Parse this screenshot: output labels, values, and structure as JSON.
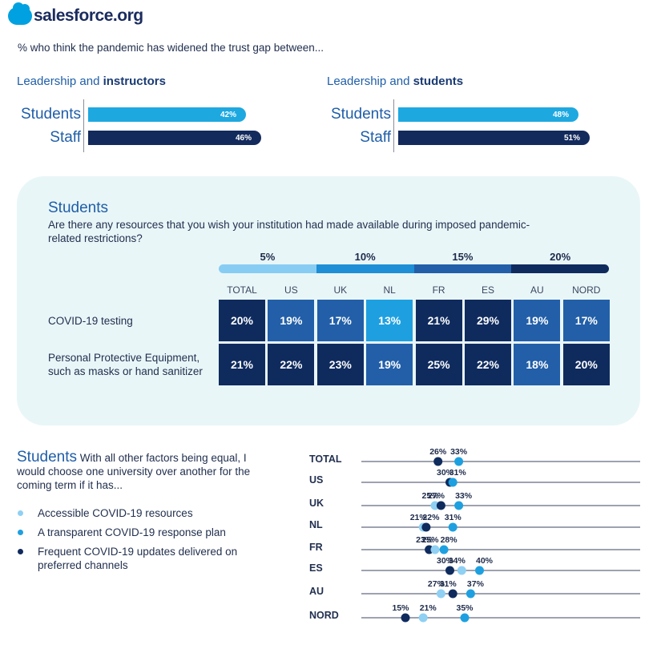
{
  "brand": {
    "logo_text": "salesforce.org",
    "accent": "#00a1e0",
    "navy": "#1a2b5e"
  },
  "intro": "% who think the pandemic has widened the trust gap between...",
  "bar_blocks": [
    {
      "title_prefix": "Leadership and ",
      "title_bold": "instructors",
      "bars": [
        {
          "label": "Students",
          "value": 42,
          "text": "42%",
          "color": "#1ea8e0"
        },
        {
          "label": "Staff",
          "value": 46,
          "text": "46%",
          "color": "#132a5c"
        }
      ]
    },
    {
      "title_prefix": "Leadership and ",
      "title_bold": "students",
      "bars": [
        {
          "label": "Students",
          "value": 48,
          "text": "48%",
          "color": "#1ea8e0"
        },
        {
          "label": "Staff",
          "value": 51,
          "text": "51%",
          "color": "#132a5c"
        }
      ]
    }
  ],
  "heatmap": {
    "title": "Students",
    "question": "Are there any resources that you wish your institution had made available during imposed pandemic-related restrictions?",
    "scale": [
      {
        "label": "5%",
        "color": "#87cdf3"
      },
      {
        "label": "10%",
        "color": "#1e8ed6"
      },
      {
        "label": "15%",
        "color": "#225fa8"
      },
      {
        "label": "20%",
        "color": "#0f2b5e"
      }
    ],
    "columns": [
      "TOTAL",
      "US",
      "UK",
      "NL",
      "FR",
      "ES",
      "AU",
      "NORD"
    ],
    "rows": [
      {
        "label": [
          "COVID-19 testing"
        ],
        "values": [
          20,
          19,
          17,
          13,
          21,
          29,
          19,
          17
        ],
        "colors": [
          "#0f2b5e",
          "#225fa8",
          "#225fa8",
          "#1ea0e0",
          "#0f2b5e",
          "#0f2b5e",
          "#225fa8",
          "#225fa8"
        ]
      },
      {
        "label": [
          "Personal Protective Equipment,",
          "such as masks or hand sanitizer"
        ],
        "values": [
          21,
          22,
          23,
          19,
          25,
          22,
          18,
          20
        ],
        "colors": [
          "#0f2b5e",
          "#0f2b5e",
          "#0f2b5e",
          "#225fa8",
          "#0f2b5e",
          "#0f2b5e",
          "#225fa8",
          "#0f2b5e"
        ]
      }
    ]
  },
  "dot_section": {
    "title_big": "Students",
    "title_rest": " With all other factors being equal, I would choose one university over another for the coming term if it has...",
    "legend": [
      {
        "label": "Accessible COVID-19 resources",
        "color": "#8fd0f3"
      },
      {
        "label": "A transparent COVID-19 response plan",
        "color": "#1ea0e0"
      },
      {
        "label": "Frequent COVID-19 updates delivered on preferred channels",
        "color": "#0f2b5e"
      }
    ]
  },
  "chart_data": [
    {
      "type": "bar",
      "title": "Leadership and instructors",
      "categories": [
        "Students",
        "Staff"
      ],
      "values": [
        42,
        46
      ],
      "unit": "%"
    },
    {
      "type": "bar",
      "title": "Leadership and students",
      "categories": [
        "Students",
        "Staff"
      ],
      "values": [
        48,
        51
      ],
      "unit": "%"
    },
    {
      "type": "heatmap",
      "title": "Students",
      "columns": [
        "TOTAL",
        "US",
        "UK",
        "NL",
        "FR",
        "ES",
        "AU",
        "NORD"
      ],
      "rows": [
        "COVID-19 testing",
        "Personal Protective Equipment, such as masks or hand sanitizer"
      ],
      "values": [
        [
          20,
          19,
          17,
          13,
          21,
          29,
          19,
          17
        ],
        [
          21,
          22,
          23,
          19,
          25,
          22,
          18,
          20
        ]
      ],
      "unit": "%"
    },
    {
      "type": "scatter",
      "title": "Students With all other factors being equal, I would choose one university over another for the coming term if it has...",
      "categories": [
        "TOTAL",
        "US",
        "UK",
        "NL",
        "FR",
        "ES",
        "AU",
        "NORD"
      ],
      "xlim": [
        5,
        50
      ],
      "series": [
        {
          "name": "Accessible COVID-19 resources",
          "values": [
            null,
            null,
            25,
            21,
            25,
            34,
            27,
            21
          ]
        },
        {
          "name": "A transparent COVID-19 response plan",
          "values": [
            33,
            31,
            33,
            31,
            28,
            40,
            37,
            35
          ]
        },
        {
          "name": "Frequent COVID-19 updates delivered on preferred channels",
          "values": [
            26,
            30,
            27,
            22,
            23,
            30,
            31,
            15
          ]
        }
      ],
      "point_labels": [
        [
          "26%",
          "33%"
        ],
        [
          "30%",
          "31%"
        ],
        [
          "25%",
          "27%",
          "33%"
        ],
        [
          "21%",
          "22%",
          "31%"
        ],
        [
          "23%",
          "25%",
          "28%"
        ],
        [
          "30%",
          "34%",
          "40%"
        ],
        [
          "27%",
          "31%",
          "37%"
        ],
        [
          "15%",
          "21%",
          "35%"
        ]
      ]
    }
  ]
}
